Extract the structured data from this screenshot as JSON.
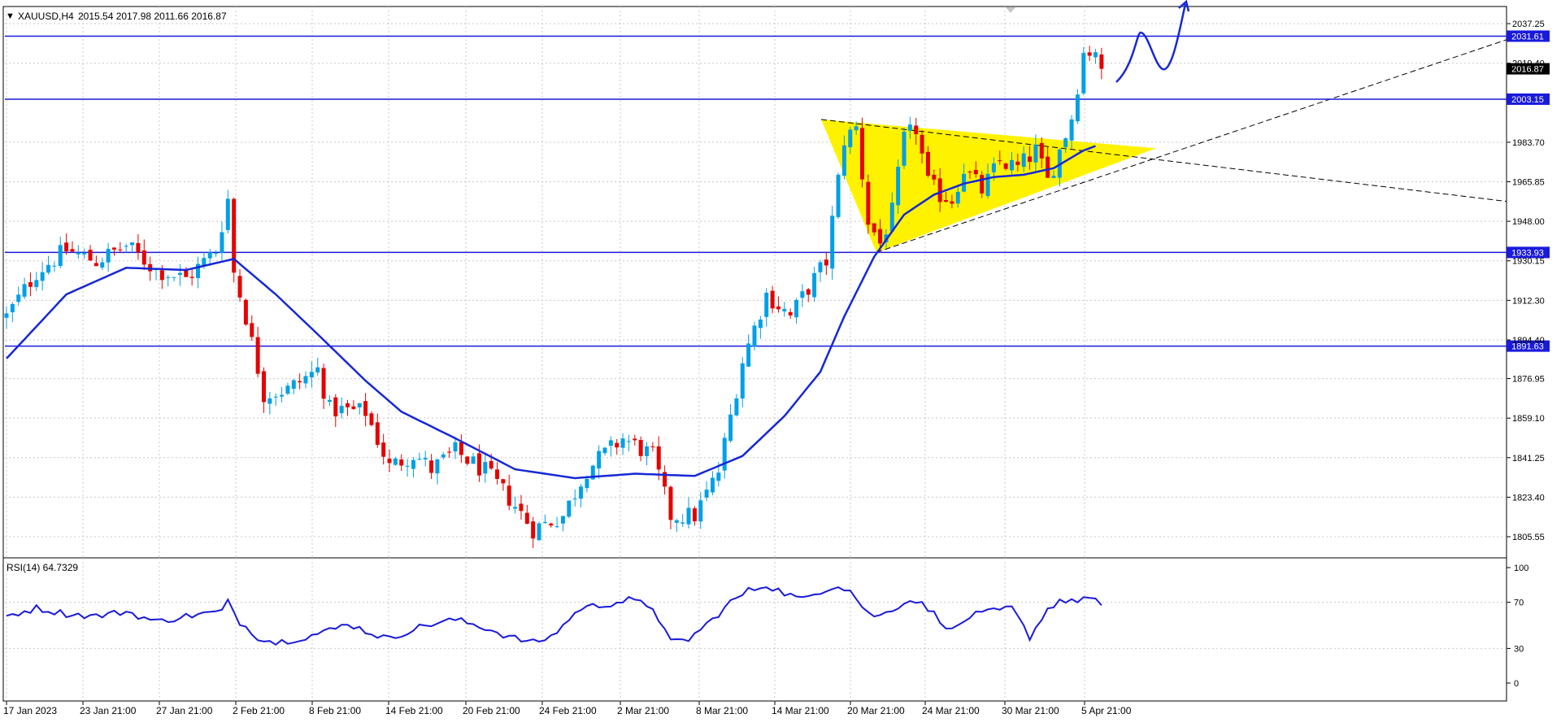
{
  "header": {
    "dropdown_arrow": "▼",
    "symbol_label": "XAUUSD,H4",
    "ohlc_text": "2015.54 2017.98 2011.66 2016.87"
  },
  "rsi_header": {
    "label": "RSI(14) 64.7329"
  },
  "price_axis": {
    "ticks": [
      "2037.25",
      "2019.40",
      "1983.70",
      "1965.85",
      "1948.00",
      "1930.15",
      "1912.30",
      "1894.40",
      "1876.95",
      "1859.10",
      "1841.25",
      "1823.40",
      "1805.55"
    ]
  },
  "rsi_axis": {
    "ticks": [
      "100",
      "70",
      "30",
      "0"
    ]
  },
  "time_axis": {
    "labels": [
      "17 Jan 2023",
      "23 Jan 21:00",
      "27 Jan 21:00",
      "2 Feb 21:00",
      "8 Feb 21:00",
      "14 Feb 21:00",
      "20 Feb 21:00",
      "24 Feb 21:00",
      "2 Mar 21:00",
      "8 Mar 21:00",
      "14 Mar 21:00",
      "20 Mar 21:00",
      "24 Mar 21:00",
      "30 Mar 21:00",
      "5 Apr 21:00"
    ]
  },
  "level_lines": [
    {
      "label": "2031.61",
      "price": 2031.61
    },
    {
      "label": "2003.15",
      "price": 2003.15
    },
    {
      "label": "1933.93",
      "price": 1933.93
    },
    {
      "label": "1891.63",
      "price": 1891.63
    }
  ],
  "current_price": {
    "label": "2016.87",
    "price": 2016.87
  },
  "colors": {
    "bull_candle": "#00a0e6",
    "bear_candle": "#e60000",
    "moving_average": "#1628d6",
    "level_line": "#1a1adc",
    "triangle_fill": "#fff200",
    "rsi_line": "#1a1adc",
    "grid": "#c8c8c8",
    "label_bg": "#1a1adc",
    "label_fg": "#ffffff"
  },
  "chart_data": {
    "type": "candlestick",
    "symbol": "XAUUSD",
    "timeframe": "H4",
    "ylim": [
      1796,
      2045
    ],
    "price_path": [
      [
        0,
        1905
      ],
      [
        5,
        1925
      ],
      [
        10,
        1935
      ],
      [
        15,
        1930
      ],
      [
        20,
        1937
      ],
      [
        25,
        1926
      ],
      [
        30,
        1922
      ],
      [
        35,
        1935
      ],
      [
        37,
        1958
      ],
      [
        38,
        1925
      ],
      [
        40,
        1905
      ],
      [
        43,
        1870
      ],
      [
        47,
        1872
      ],
      [
        52,
        1881
      ],
      [
        54,
        1863
      ],
      [
        60,
        1862
      ],
      [
        64,
        1837
      ],
      [
        68,
        1843
      ],
      [
        71,
        1836
      ],
      [
        75,
        1844
      ],
      [
        80,
        1835
      ],
      [
        84,
        1823
      ],
      [
        88,
        1809
      ],
      [
        93,
        1815
      ],
      [
        97,
        1836
      ],
      [
        103,
        1850
      ],
      [
        108,
        1842
      ],
      [
        111,
        1815
      ],
      [
        115,
        1815
      ],
      [
        119,
        1835
      ],
      [
        123,
        1885
      ],
      [
        127,
        1915
      ],
      [
        131,
        1905
      ],
      [
        134,
        1918
      ],
      [
        137,
        1930
      ],
      [
        140,
        1985
      ],
      [
        142,
        1990
      ],
      [
        144,
        1948
      ],
      [
        146,
        1938
      ],
      [
        148,
        1952
      ],
      [
        150,
        1985
      ],
      [
        152,
        1990
      ],
      [
        154,
        1965
      ],
      [
        156,
        1960
      ],
      [
        158,
        1958
      ],
      [
        160,
        1972
      ],
      [
        163,
        1962
      ],
      [
        166,
        1975
      ],
      [
        169,
        1972
      ],
      [
        172,
        1980
      ],
      [
        174,
        1966
      ],
      [
        176,
        1980
      ],
      [
        178,
        1995
      ],
      [
        180,
        2024
      ],
      [
        182,
        2026
      ],
      [
        183,
        2016.87
      ]
    ],
    "ma_path": [
      [
        0,
        1886
      ],
      [
        10,
        1915
      ],
      [
        20,
        1927
      ],
      [
        30,
        1926
      ],
      [
        38,
        1931
      ],
      [
        45,
        1915
      ],
      [
        52,
        1897
      ],
      [
        60,
        1876
      ],
      [
        66,
        1862
      ],
      [
        75,
        1850
      ],
      [
        85,
        1836
      ],
      [
        95,
        1832
      ],
      [
        105,
        1834
      ],
      [
        115,
        1833
      ],
      [
        123,
        1842
      ],
      [
        130,
        1860
      ],
      [
        136,
        1880
      ],
      [
        140,
        1905
      ],
      [
        145,
        1932
      ],
      [
        150,
        1951
      ],
      [
        155,
        1960
      ],
      [
        160,
        1965
      ],
      [
        165,
        1968
      ],
      [
        170,
        1969
      ],
      [
        175,
        1972
      ],
      [
        180,
        1980
      ],
      [
        182,
        1982
      ]
    ],
    "rsi_ylim": [
      0,
      100
    ],
    "rsi_path": [
      [
        0,
        58
      ],
      [
        5,
        65
      ],
      [
        10,
        60
      ],
      [
        15,
        58
      ],
      [
        20,
        62
      ],
      [
        25,
        53
      ],
      [
        30,
        58
      ],
      [
        36,
        62
      ],
      [
        37,
        70
      ],
      [
        39,
        53
      ],
      [
        42,
        40
      ],
      [
        45,
        35
      ],
      [
        50,
        40
      ],
      [
        55,
        47
      ],
      [
        57,
        52
      ],
      [
        60,
        45
      ],
      [
        64,
        38
      ],
      [
        67,
        45
      ],
      [
        70,
        50
      ],
      [
        75,
        55
      ],
      [
        80,
        48
      ],
      [
        84,
        40
      ],
      [
        88,
        35
      ],
      [
        91,
        40
      ],
      [
        96,
        65
      ],
      [
        100,
        68
      ],
      [
        104,
        72
      ],
      [
        108,
        66
      ],
      [
        111,
        35
      ],
      [
        114,
        38
      ],
      [
        118,
        55
      ],
      [
        121,
        70
      ],
      [
        124,
        80
      ],
      [
        127,
        85
      ],
      [
        130,
        78
      ],
      [
        133,
        72
      ],
      [
        136,
        80
      ],
      [
        139,
        85
      ],
      [
        141,
        80
      ],
      [
        144,
        60
      ],
      [
        146,
        58
      ],
      [
        150,
        70
      ],
      [
        152,
        72
      ],
      [
        155,
        60
      ],
      [
        158,
        45
      ],
      [
        161,
        58
      ],
      [
        165,
        62
      ],
      [
        168,
        65
      ],
      [
        171,
        40
      ],
      [
        174,
        64
      ],
      [
        176,
        72
      ],
      [
        178,
        70
      ],
      [
        180,
        74
      ],
      [
        182,
        72
      ],
      [
        183,
        64.73
      ]
    ],
    "rsi_levels": [
      70,
      30
    ]
  }
}
